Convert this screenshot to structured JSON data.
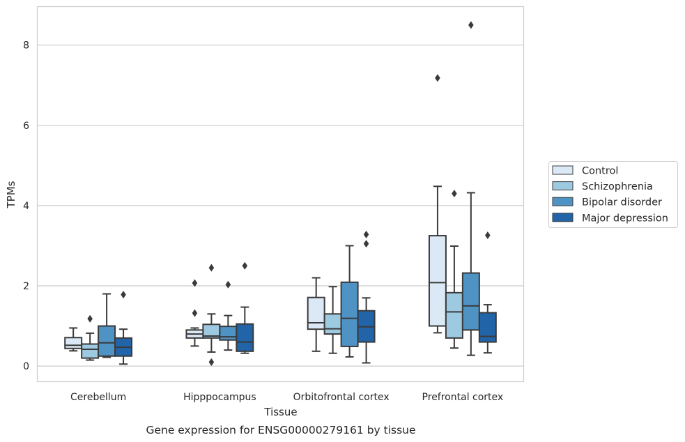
{
  "chart_data": {
    "type": "box",
    "title": "Gene expression for ENSG00000279161 by tissue",
    "xlabel": "Tissue",
    "ylabel": "TPMs",
    "ylim": [
      -0.38,
      8.95
    ],
    "yticks": [
      0,
      2,
      4,
      6,
      8
    ],
    "grid": true,
    "legend_position": "right-center, outside",
    "categories": [
      "Cerebellum",
      "Hipppocampus",
      "Orbitofrontal cortex",
      "Prefrontal cortex"
    ],
    "series": [
      {
        "name": "Control",
        "color": "#dbe9f6",
        "boxes": [
          {
            "whislo": 0.38,
            "q1": 0.44,
            "med": 0.52,
            "q3": 0.71,
            "whishi": 0.95,
            "fliers": []
          },
          {
            "whislo": 0.5,
            "q1": 0.7,
            "med": 0.8,
            "q3": 0.9,
            "whishi": 0.95,
            "fliers": [
              1.32,
              2.07
            ]
          },
          {
            "whislo": 0.37,
            "q1": 0.92,
            "med": 1.08,
            "q3": 1.71,
            "whishi": 2.2,
            "fliers": []
          },
          {
            "whislo": 0.83,
            "q1": 1.0,
            "med": 2.08,
            "q3": 3.25,
            "whishi": 4.48,
            "fliers": [
              7.18
            ]
          }
        ]
      },
      {
        "name": "Schizophrenia",
        "color": "#9ecae1",
        "boxes": [
          {
            "whislo": 0.15,
            "q1": 0.2,
            "med": 0.42,
            "q3": 0.55,
            "whishi": 0.82,
            "fliers": [
              1.18
            ]
          },
          {
            "whislo": 0.35,
            "q1": 0.7,
            "med": 0.75,
            "q3": 1.04,
            "whishi": 1.3,
            "fliers": [
              0.1,
              2.45
            ]
          },
          {
            "whislo": 0.32,
            "q1": 0.8,
            "med": 0.93,
            "q3": 1.3,
            "whishi": 1.98,
            "fliers": []
          },
          {
            "whislo": 0.45,
            "q1": 0.7,
            "med": 1.35,
            "q3": 1.83,
            "whishi": 2.99,
            "fliers": [
              4.3
            ]
          }
        ]
      },
      {
        "name": "Bipolar disorder",
        "color": "#4f93c5",
        "boxes": [
          {
            "whislo": 0.22,
            "q1": 0.25,
            "med": 0.58,
            "q3": 1.0,
            "whishi": 1.8,
            "fliers": []
          },
          {
            "whislo": 0.4,
            "q1": 0.65,
            "med": 0.73,
            "q3": 0.99,
            "whishi": 1.26,
            "fliers": [
              2.03
            ]
          },
          {
            "whislo": 0.23,
            "q1": 0.49,
            "med": 1.19,
            "q3": 2.09,
            "whishi": 3.0,
            "fliers": []
          },
          {
            "whislo": 0.27,
            "q1": 0.9,
            "med": 1.5,
            "q3": 2.32,
            "whishi": 4.32,
            "fliers": [
              8.5
            ]
          }
        ]
      },
      {
        "name": "Major depression",
        "color": "#2264a8",
        "boxes": [
          {
            "whislo": 0.05,
            "q1": 0.25,
            "med": 0.47,
            "q3": 0.7,
            "whishi": 0.92,
            "fliers": [
              1.78
            ]
          },
          {
            "whislo": 0.32,
            "q1": 0.37,
            "med": 0.6,
            "q3": 1.05,
            "whishi": 1.47,
            "fliers": [
              2.5
            ]
          },
          {
            "whislo": 0.08,
            "q1": 0.6,
            "med": 0.98,
            "q3": 1.38,
            "whishi": 1.7,
            "fliers": [
              3.05,
              3.28
            ]
          },
          {
            "whislo": 0.33,
            "q1": 0.6,
            "med": 0.74,
            "q3": 1.33,
            "whishi": 1.53,
            "fliers": [
              3.26
            ]
          }
        ]
      }
    ]
  }
}
